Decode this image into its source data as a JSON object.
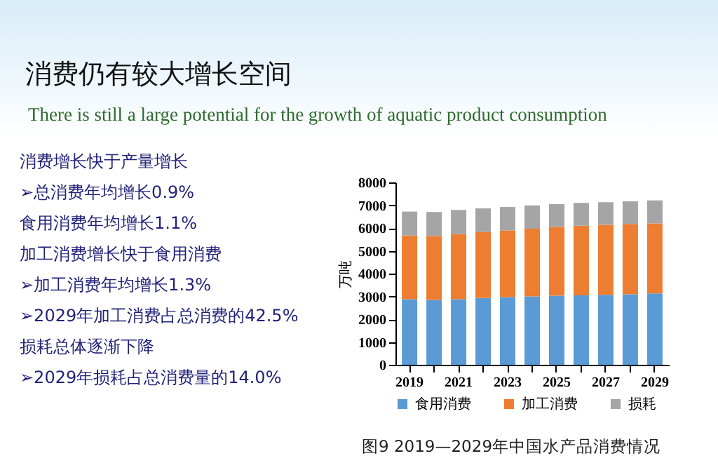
{
  "chart_data": {
    "type": "bar",
    "title": "消费仍有较大增长空间",
    "subtitle": "There is still a large potential for the growth of aquatic product consumption",
    "annotations": [
      "消费增长快于产量增长",
      "➢总消费年均增长0.9%",
      "食用消费年均增长1.1%",
      "加工消费增长快于食用消费",
      "➢加工消费年均增长1.3%",
      "➢2029年加工消费占总消费的42.5%",
      "损耗总体逐渐下降",
      "➢2029年损耗占总消费量的14.0%",
      "图9   2019—2029年中国水产品消费情况"
    ],
    "ylabel": "万吨",
    "categories": [
      "2019",
      null,
      "2021",
      null,
      "2023",
      null,
      "2025",
      null,
      "2027",
      null,
      "2029"
    ],
    "stacked": true,
    "series": [
      {
        "name": "食用消费",
        "color": "#5b9bd5",
        "values": [
          2880,
          2850,
          2880,
          2930,
          2970,
          3000,
          3030,
          3050,
          3070,
          3090,
          3130
        ]
      },
      {
        "name": "加工消费",
        "color": "#ed7d31",
        "values": [
          2790,
          2800,
          2850,
          2890,
          2920,
          2970,
          3020,
          3050,
          3070,
          3090,
          3070
        ]
      },
      {
        "name": "损耗",
        "color": "#a5a5a5",
        "values": [
          1050,
          1050,
          1060,
          1040,
          1030,
          1020,
          1000,
          1000,
          990,
          990,
          1010
        ]
      }
    ],
    "ylim": [
      0,
      8000
    ],
    "yticks": [
      0,
      1000,
      2000,
      3000,
      4000,
      5000,
      6000,
      7000,
      8000
    ],
    "grid": false,
    "legend": "bottom"
  }
}
